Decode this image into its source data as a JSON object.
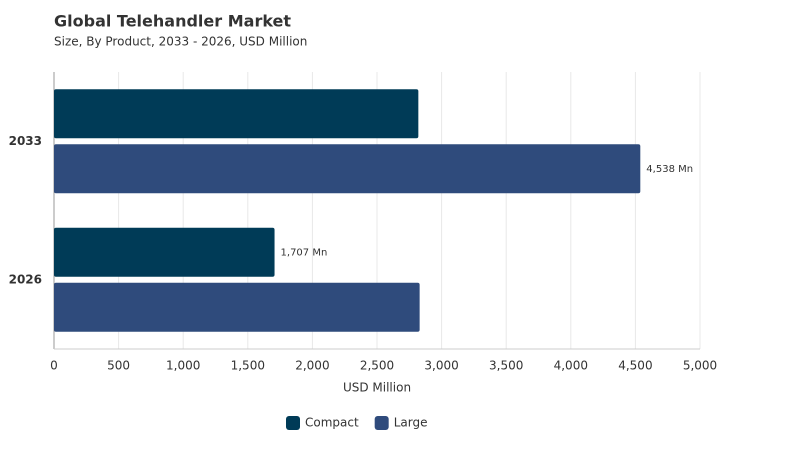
{
  "chart_data": {
    "type": "hbar",
    "title": "Global Telehandler Market",
    "subtitle": "Size, By Product, 2033 - 2026, USD Million",
    "xlabel": "USD Million",
    "categories": [
      "2033",
      "2026"
    ],
    "series": [
      {
        "name": "Compact",
        "color": "#003b57",
        "values": [
          2820,
          1707
        ],
        "value_labels": [
          null,
          "1,707 Mn"
        ]
      },
      {
        "name": "Large",
        "color": "#2f4b7c",
        "values": [
          4538,
          2830
        ],
        "value_labels": [
          "4,538 Mn",
          null
        ]
      }
    ],
    "xlim": [
      0,
      5000
    ],
    "xticks": [
      0,
      500,
      {
        "value": 1000,
        "label": "1,000"
      },
      {
        "value": 1500,
        "label": "1,500"
      },
      {
        "value": 2000,
        "label": "2,000"
      },
      {
        "value": 2500,
        "label": "2,500"
      },
      {
        "value": 3000,
        "label": "3,000"
      },
      {
        "value": 3500,
        "label": "3,500"
      },
      {
        "value": 4000,
        "label": "4,000"
      },
      {
        "value": 4500,
        "label": "4,500"
      },
      {
        "value": 5000,
        "label": "5,000"
      }
    ],
    "grid": true,
    "legend": "bottom"
  }
}
